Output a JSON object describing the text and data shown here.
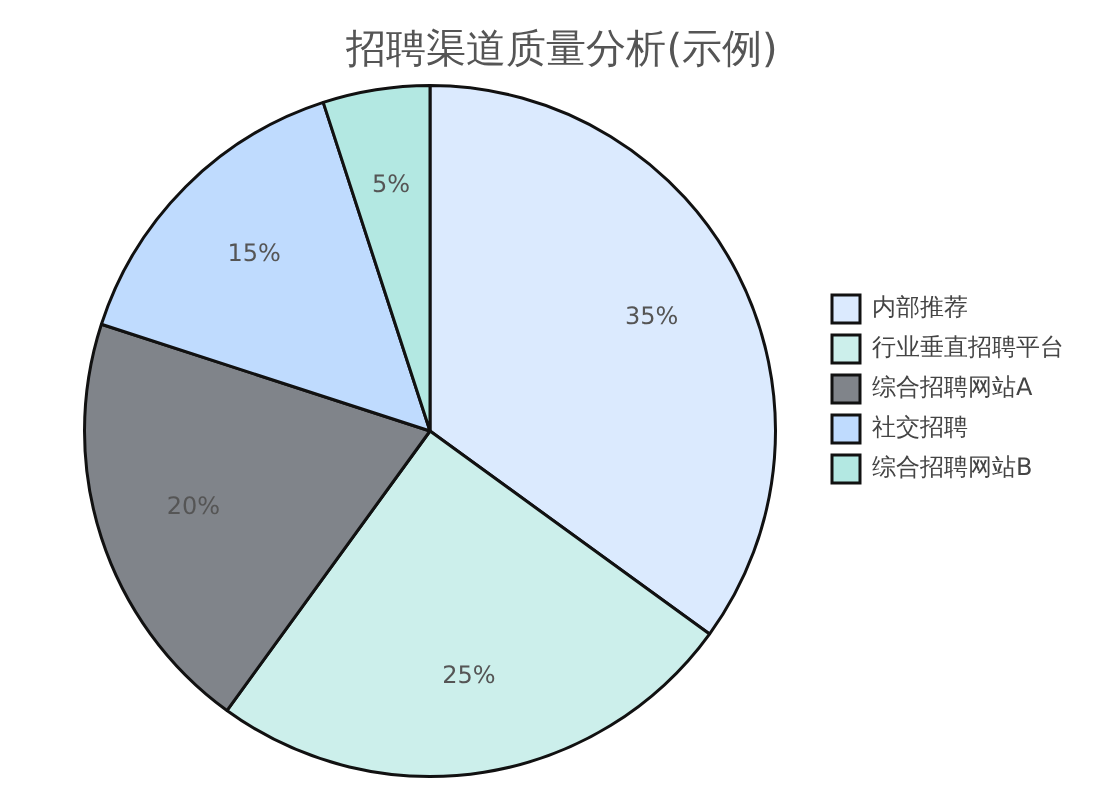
{
  "chart_data": {
    "type": "pie",
    "title": "招聘渠道质量分析(示例)",
    "categories": [
      "内部推荐",
      "行业垂直招聘平台",
      "综合招聘网站A",
      "社交招聘",
      "综合招聘网站B"
    ],
    "values": [
      35,
      25,
      20,
      15,
      5
    ],
    "colors": [
      "#dbeafe",
      "#ccefeb",
      "#80848a",
      "#bfdbfe",
      "#b3e8e2"
    ],
    "value_labels": [
      "35%",
      "25%",
      "20%",
      "15%",
      "5%"
    ],
    "legend": "right"
  }
}
